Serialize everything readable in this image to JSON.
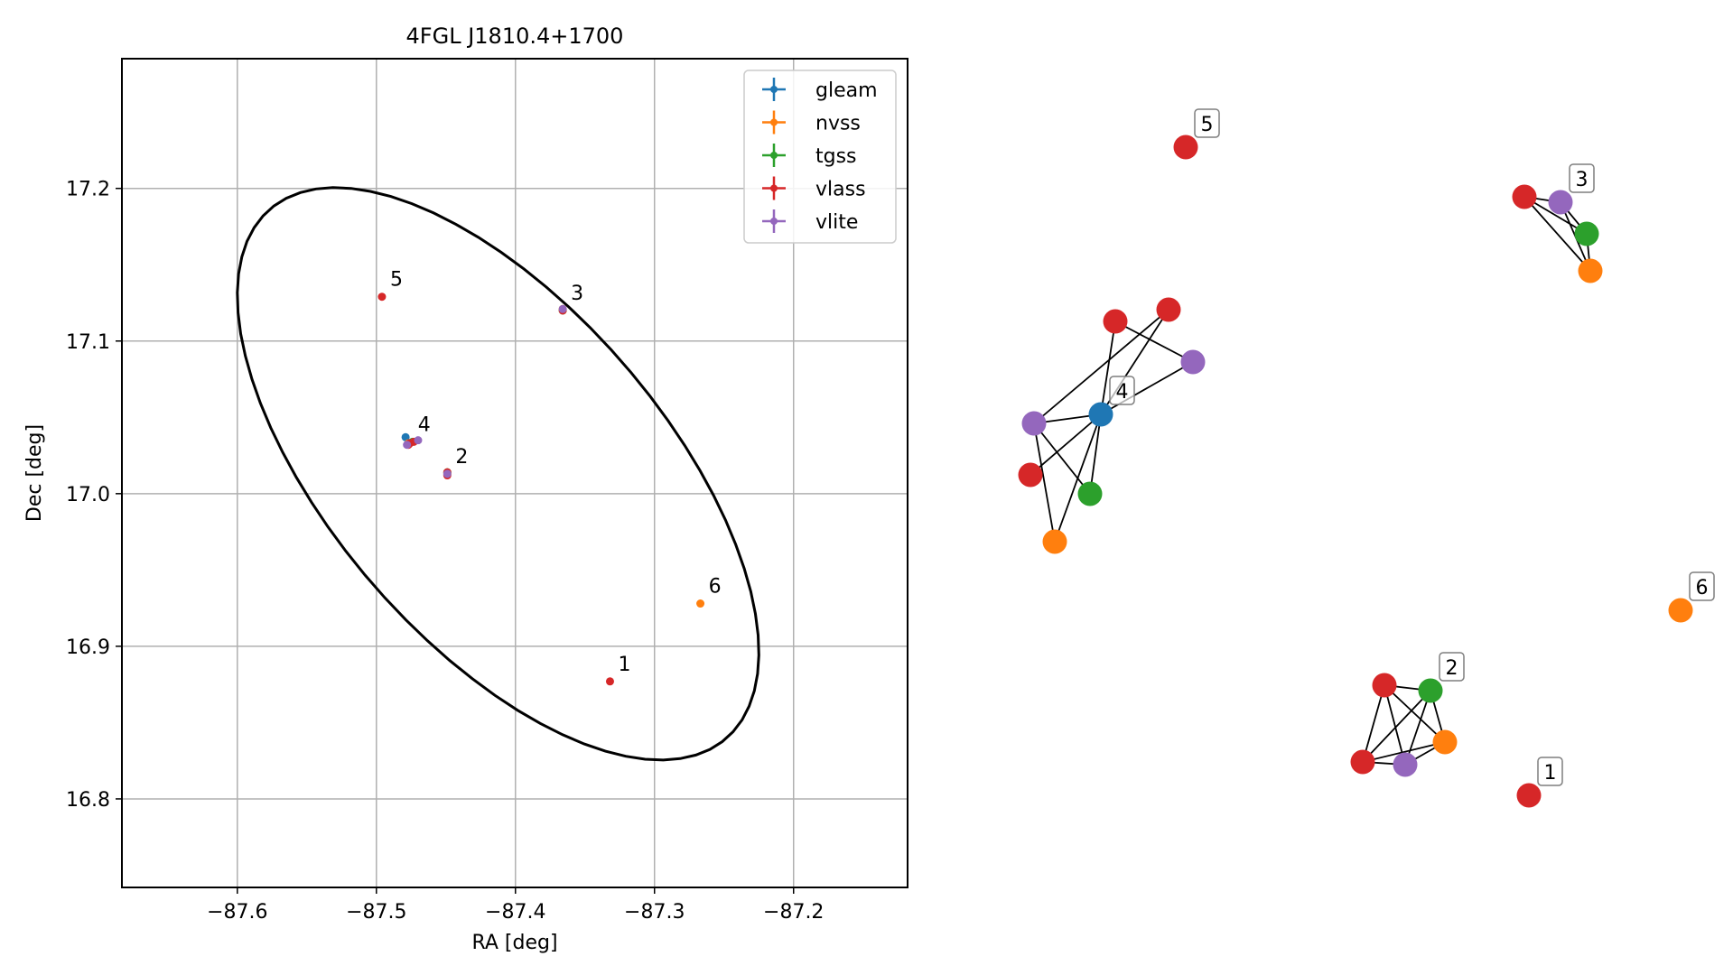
{
  "chart_data": [
    {
      "type": "scatter",
      "title": "4FGL J1810.4+1700",
      "xlabel": "RA [deg]",
      "ylabel": "Dec [deg]",
      "xlim": [
        -87.683,
        -87.118
      ],
      "ylim": [
        16.742,
        17.285
      ],
      "x_ticks": [
        -87.6,
        -87.5,
        -87.4,
        -87.3,
        -87.2
      ],
      "x_tick_labels": [
        "−87.6",
        "−87.5",
        "−87.4",
        "−87.3",
        "−87.2"
      ],
      "y_ticks": [
        16.8,
        16.9,
        17.0,
        17.1,
        17.2
      ],
      "y_tick_labels": [
        "16.8",
        "16.9",
        "17.0",
        "17.1",
        "17.2"
      ],
      "grid": true,
      "legend_position": "top-right",
      "ellipse": {
        "center": [
          -87.4125,
          17.013
        ],
        "semi_axes_deg": [
          0.239,
          0.115
        ],
        "tilt_deg": -45,
        "color": "#000000"
      },
      "series": [
        {
          "name": "gleam",
          "color": "#1f77b4",
          "points": [
            {
              "x": -87.479,
              "y": 17.037
            }
          ]
        },
        {
          "name": "nvss",
          "color": "#ff7f0e",
          "points": [
            {
              "x": -87.477,
              "y": 17.033
            },
            {
              "x": -87.449,
              "y": 17.013
            },
            {
              "x": -87.366,
              "y": 17.121
            },
            {
              "x": -87.267,
              "y": 16.928
            }
          ]
        },
        {
          "name": "tgss",
          "color": "#2ca02c",
          "points": [
            {
              "x": -87.474,
              "y": 17.034
            },
            {
              "x": -87.449,
              "y": 17.014
            },
            {
              "x": -87.366,
              "y": 17.12
            }
          ]
        },
        {
          "name": "vlass",
          "color": "#d62728",
          "points": [
            {
              "x": -87.332,
              "y": 16.877
            },
            {
              "x": -87.449,
              "y": 17.012
            },
            {
              "x": -87.366,
              "y": 17.12
            },
            {
              "x": -87.476,
              "y": 17.033
            },
            {
              "x": -87.473,
              "y": 17.034
            },
            {
              "x": -87.477,
              "y": 17.032
            },
            {
              "x": -87.496,
              "y": 17.129
            },
            {
              "x": -87.449,
              "y": 17.014
            }
          ]
        },
        {
          "name": "vlite",
          "color": "#9467bd",
          "points": [
            {
              "x": -87.47,
              "y": 17.035
            },
            {
              "x": -87.478,
              "y": 17.032
            },
            {
              "x": -87.449,
              "y": 17.013
            },
            {
              "x": -87.366,
              "y": 17.121
            }
          ]
        }
      ],
      "annotations": [
        {
          "label": "1",
          "x": -87.332,
          "y": 16.877
        },
        {
          "label": "2",
          "x": -87.449,
          "y": 17.013
        },
        {
          "label": "3",
          "x": -87.366,
          "y": 17.12
        },
        {
          "label": "4",
          "x": -87.476,
          "y": 17.034
        },
        {
          "label": "5",
          "x": -87.496,
          "y": 17.129
        },
        {
          "label": "6",
          "x": -87.267,
          "y": 16.928
        }
      ]
    },
    {
      "type": "network",
      "nodes": [
        {
          "id": "n4",
          "series": "gleam",
          "label": "4"
        },
        {
          "id": "v4a",
          "series": "vlite"
        },
        {
          "id": "r4a",
          "series": "vlass"
        },
        {
          "id": "r4b",
          "series": "vlass"
        },
        {
          "id": "r4c",
          "series": "vlass"
        },
        {
          "id": "p4",
          "series": "vlite"
        },
        {
          "id": "g4",
          "series": "tgss"
        },
        {
          "id": "o4",
          "series": "nvss"
        },
        {
          "id": "n5",
          "series": "vlass",
          "label": "5"
        },
        {
          "id": "r3",
          "series": "vlass"
        },
        {
          "id": "n3",
          "series": "vlite",
          "label": "3"
        },
        {
          "id": "g3",
          "series": "tgss"
        },
        {
          "id": "o3",
          "series": "nvss"
        },
        {
          "id": "n6",
          "series": "nvss",
          "label": "6"
        },
        {
          "id": "r2a",
          "series": "vlass"
        },
        {
          "id": "n2",
          "series": "tgss",
          "label": "2"
        },
        {
          "id": "o2",
          "series": "nvss"
        },
        {
          "id": "r2b",
          "series": "vlass"
        },
        {
          "id": "v2",
          "series": "vlite"
        },
        {
          "id": "n1",
          "series": "vlass",
          "label": "1"
        }
      ],
      "edges": [
        [
          "n4",
          "r4a"
        ],
        [
          "n4",
          "r4b"
        ],
        [
          "n4",
          "r4c"
        ],
        [
          "n4",
          "p4"
        ],
        [
          "n4",
          "v4a"
        ],
        [
          "n4",
          "g4"
        ],
        [
          "n4",
          "o4"
        ],
        [
          "r4b",
          "p4"
        ],
        [
          "v4a",
          "r4c"
        ],
        [
          "v4a",
          "g4"
        ],
        [
          "v4a",
          "o4"
        ],
        [
          "r3",
          "n3"
        ],
        [
          "r3",
          "g3"
        ],
        [
          "r3",
          "o3"
        ],
        [
          "n3",
          "g3"
        ],
        [
          "n3",
          "o3"
        ],
        [
          "g3",
          "o3"
        ],
        [
          "r2a",
          "n2"
        ],
        [
          "r2a",
          "o2"
        ],
        [
          "r2a",
          "v2"
        ],
        [
          "r2a",
          "r2b"
        ],
        [
          "n2",
          "o2"
        ],
        [
          "n2",
          "v2"
        ],
        [
          "n2",
          "r2b"
        ],
        [
          "o2",
          "v2"
        ],
        [
          "o2",
          "r2b"
        ],
        [
          "v2",
          "r2b"
        ]
      ]
    }
  ]
}
